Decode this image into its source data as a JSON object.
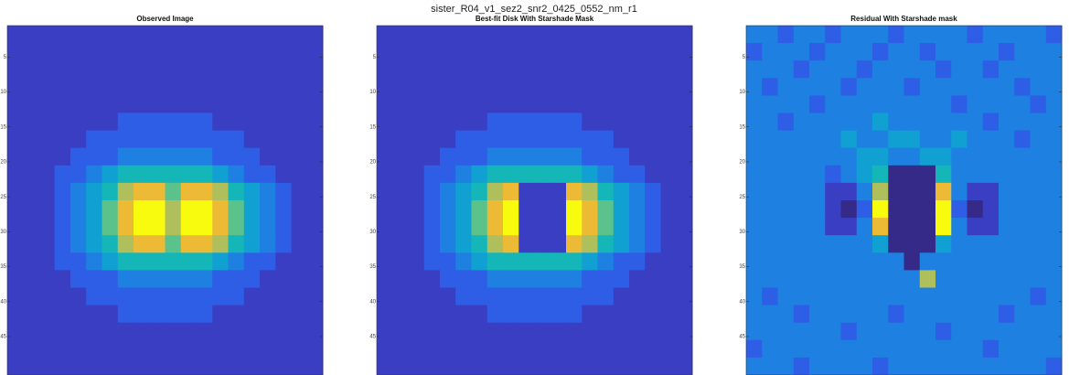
{
  "figure_title": "sister_R04_v1_sez2_snr2_0425_0552_nm_r1",
  "chart_data": [
    {
      "type": "heatmap",
      "title": "Observed Image",
      "ylim": [
        0.5,
        50.5
      ],
      "yticks": [
        5,
        10,
        15,
        20,
        25,
        30,
        35,
        40,
        45
      ],
      "clim": [
        0,
        9
      ],
      "colormap": [
        "#352a87",
        "#3a3ec3",
        "#2f5ee6",
        "#1e80e0",
        "#11a0d2",
        "#15b6b8",
        "#5cc28c",
        "#aebf5c",
        "#edba36",
        "#f9fb0e"
      ],
      "z": [
        [
          1,
          1,
          1,
          1,
          1,
          1,
          1,
          1,
          1,
          1,
          1,
          1,
          1,
          1,
          1,
          1,
          1,
          1,
          1,
          1
        ],
        [
          1,
          1,
          1,
          1,
          1,
          1,
          1,
          1,
          1,
          1,
          1,
          1,
          1,
          1,
          1,
          1,
          1,
          1,
          1,
          1
        ],
        [
          1,
          1,
          1,
          1,
          1,
          1,
          1,
          1,
          1,
          1,
          1,
          1,
          1,
          1,
          1,
          1,
          1,
          1,
          1,
          1
        ],
        [
          1,
          1,
          1,
          1,
          1,
          1,
          1,
          1,
          1,
          1,
          1,
          1,
          1,
          1,
          1,
          1,
          1,
          1,
          1,
          1
        ],
        [
          1,
          1,
          1,
          1,
          1,
          1,
          1,
          1,
          1,
          1,
          1,
          1,
          1,
          1,
          1,
          1,
          1,
          1,
          1,
          1
        ],
        [
          1,
          1,
          1,
          1,
          1,
          1,
          1,
          2,
          2,
          2,
          2,
          2,
          2,
          1,
          1,
          1,
          1,
          1,
          1,
          1
        ],
        [
          1,
          1,
          1,
          1,
          1,
          2,
          2,
          2,
          2,
          2,
          2,
          2,
          2,
          2,
          2,
          1,
          1,
          1,
          1,
          1
        ],
        [
          1,
          1,
          1,
          1,
          2,
          2,
          2,
          3,
          3,
          3,
          3,
          3,
          3,
          2,
          2,
          2,
          1,
          1,
          1,
          1
        ],
        [
          1,
          1,
          1,
          2,
          2,
          3,
          4,
          5,
          5,
          5,
          5,
          5,
          5,
          4,
          3,
          2,
          2,
          1,
          1,
          1
        ],
        [
          1,
          1,
          1,
          2,
          3,
          4,
          5,
          7,
          8,
          8,
          6,
          8,
          8,
          7,
          5,
          4,
          3,
          2,
          1,
          1
        ],
        [
          1,
          1,
          1,
          2,
          3,
          4,
          6,
          8,
          9,
          9,
          7,
          9,
          9,
          8,
          6,
          4,
          3,
          2,
          1,
          1
        ],
        [
          1,
          1,
          1,
          2,
          3,
          4,
          6,
          8,
          9,
          9,
          7,
          9,
          9,
          8,
          6,
          4,
          3,
          2,
          1,
          1
        ],
        [
          1,
          1,
          1,
          2,
          3,
          4,
          5,
          7,
          8,
          8,
          6,
          8,
          8,
          7,
          5,
          4,
          3,
          2,
          1,
          1
        ],
        [
          1,
          1,
          1,
          2,
          2,
          3,
          4,
          5,
          5,
          5,
          5,
          5,
          5,
          4,
          3,
          2,
          2,
          1,
          1,
          1
        ],
        [
          1,
          1,
          1,
          1,
          2,
          2,
          2,
          3,
          3,
          3,
          3,
          3,
          3,
          2,
          2,
          2,
          1,
          1,
          1,
          1
        ],
        [
          1,
          1,
          1,
          1,
          1,
          2,
          2,
          2,
          2,
          2,
          2,
          2,
          2,
          2,
          2,
          1,
          1,
          1,
          1,
          1
        ],
        [
          1,
          1,
          1,
          1,
          1,
          1,
          1,
          2,
          2,
          2,
          2,
          2,
          2,
          1,
          1,
          1,
          1,
          1,
          1,
          1
        ],
        [
          1,
          1,
          1,
          1,
          1,
          1,
          1,
          1,
          1,
          1,
          1,
          1,
          1,
          1,
          1,
          1,
          1,
          1,
          1,
          1
        ],
        [
          1,
          1,
          1,
          1,
          1,
          1,
          1,
          1,
          1,
          1,
          1,
          1,
          1,
          1,
          1,
          1,
          1,
          1,
          1,
          1
        ],
        [
          1,
          1,
          1,
          1,
          1,
          1,
          1,
          1,
          1,
          1,
          1,
          1,
          1,
          1,
          1,
          1,
          1,
          1,
          1,
          1
        ]
      ]
    },
    {
      "type": "heatmap",
      "title": "Best-fit Disk With Starshade Mask",
      "ylim": [
        0.5,
        50.5
      ],
      "yticks": [
        5,
        10,
        15,
        20,
        25,
        30,
        35,
        40,
        45
      ],
      "clim": [
        0,
        9
      ],
      "colormap": [
        "#352a87",
        "#3a3ec3",
        "#2f5ee6",
        "#1e80e0",
        "#11a0d2",
        "#15b6b8",
        "#5cc28c",
        "#aebf5c",
        "#edba36",
        "#f9fb0e"
      ],
      "z": [
        [
          1,
          1,
          1,
          1,
          1,
          1,
          1,
          1,
          1,
          1,
          1,
          1,
          1,
          1,
          1,
          1,
          1,
          1,
          1,
          1
        ],
        [
          1,
          1,
          1,
          1,
          1,
          1,
          1,
          1,
          1,
          1,
          1,
          1,
          1,
          1,
          1,
          1,
          1,
          1,
          1,
          1
        ],
        [
          1,
          1,
          1,
          1,
          1,
          1,
          1,
          1,
          1,
          1,
          1,
          1,
          1,
          1,
          1,
          1,
          1,
          1,
          1,
          1
        ],
        [
          1,
          1,
          1,
          1,
          1,
          1,
          1,
          1,
          1,
          1,
          1,
          1,
          1,
          1,
          1,
          1,
          1,
          1,
          1,
          1
        ],
        [
          1,
          1,
          1,
          1,
          1,
          1,
          1,
          1,
          1,
          1,
          1,
          1,
          1,
          1,
          1,
          1,
          1,
          1,
          1,
          1
        ],
        [
          1,
          1,
          1,
          1,
          1,
          1,
          1,
          2,
          2,
          2,
          2,
          2,
          2,
          1,
          1,
          1,
          1,
          1,
          1,
          1
        ],
        [
          1,
          1,
          1,
          1,
          1,
          2,
          2,
          2,
          2,
          2,
          2,
          2,
          2,
          2,
          2,
          1,
          1,
          1,
          1,
          1
        ],
        [
          1,
          1,
          1,
          1,
          2,
          2,
          2,
          3,
          3,
          3,
          3,
          3,
          3,
          2,
          2,
          2,
          1,
          1,
          1,
          1
        ],
        [
          1,
          1,
          1,
          2,
          2,
          3,
          4,
          5,
          5,
          5,
          5,
          5,
          5,
          4,
          3,
          2,
          2,
          1,
          1,
          1
        ],
        [
          1,
          1,
          1,
          2,
          3,
          4,
          5,
          7,
          8,
          1,
          1,
          1,
          8,
          7,
          5,
          4,
          3,
          2,
          1,
          1
        ],
        [
          1,
          1,
          1,
          2,
          3,
          4,
          6,
          8,
          9,
          1,
          1,
          1,
          9,
          8,
          6,
          4,
          3,
          2,
          1,
          1
        ],
        [
          1,
          1,
          1,
          2,
          3,
          4,
          6,
          8,
          9,
          1,
          1,
          1,
          9,
          8,
          6,
          4,
          3,
          2,
          1,
          1
        ],
        [
          1,
          1,
          1,
          2,
          3,
          4,
          5,
          7,
          8,
          1,
          1,
          1,
          8,
          7,
          5,
          4,
          3,
          2,
          1,
          1
        ],
        [
          1,
          1,
          1,
          2,
          2,
          3,
          4,
          5,
          5,
          5,
          5,
          5,
          5,
          4,
          3,
          2,
          2,
          1,
          1,
          1
        ],
        [
          1,
          1,
          1,
          1,
          2,
          2,
          2,
          3,
          3,
          3,
          3,
          3,
          3,
          2,
          2,
          2,
          1,
          1,
          1,
          1
        ],
        [
          1,
          1,
          1,
          1,
          1,
          2,
          2,
          2,
          2,
          2,
          2,
          2,
          2,
          2,
          2,
          1,
          1,
          1,
          1,
          1
        ],
        [
          1,
          1,
          1,
          1,
          1,
          1,
          1,
          2,
          2,
          2,
          2,
          2,
          2,
          1,
          1,
          1,
          1,
          1,
          1,
          1
        ],
        [
          1,
          1,
          1,
          1,
          1,
          1,
          1,
          1,
          1,
          1,
          1,
          1,
          1,
          1,
          1,
          1,
          1,
          1,
          1,
          1
        ],
        [
          1,
          1,
          1,
          1,
          1,
          1,
          1,
          1,
          1,
          1,
          1,
          1,
          1,
          1,
          1,
          1,
          1,
          1,
          1,
          1
        ],
        [
          1,
          1,
          1,
          1,
          1,
          1,
          1,
          1,
          1,
          1,
          1,
          1,
          1,
          1,
          1,
          1,
          1,
          1,
          1,
          1
        ]
      ]
    },
    {
      "type": "heatmap",
      "title": "Residual With Starshade mask",
      "ylim": [
        0.5,
        50.5
      ],
      "yticks": [
        5,
        10,
        15,
        20,
        25,
        30,
        35,
        40,
        45
      ],
      "clim": [
        0,
        9
      ],
      "colormap": [
        "#352a87",
        "#3a3ec3",
        "#2f5ee6",
        "#1e80e0",
        "#11a0d2",
        "#15b6b8",
        "#5cc28c",
        "#aebf5c",
        "#edba36",
        "#f9fb0e"
      ],
      "z": [
        [
          3,
          3,
          2,
          3,
          3,
          2,
          3,
          3,
          3,
          2,
          3,
          3,
          3,
          3,
          2,
          3,
          3,
          3,
          3,
          2
        ],
        [
          2,
          3,
          3,
          3,
          2,
          3,
          3,
          3,
          2,
          3,
          3,
          2,
          3,
          3,
          3,
          3,
          2,
          3,
          3,
          3
        ],
        [
          3,
          3,
          3,
          2,
          3,
          3,
          3,
          2,
          3,
          3,
          3,
          3,
          2,
          3,
          3,
          2,
          3,
          3,
          3,
          3
        ],
        [
          3,
          2,
          3,
          3,
          3,
          3,
          2,
          3,
          3,
          3,
          2,
          3,
          3,
          3,
          3,
          3,
          3,
          2,
          3,
          3
        ],
        [
          3,
          3,
          3,
          3,
          2,
          3,
          3,
          3,
          3,
          3,
          3,
          3,
          3,
          2,
          3,
          3,
          3,
          3,
          2,
          3
        ],
        [
          3,
          3,
          2,
          3,
          3,
          3,
          3,
          3,
          4,
          3,
          3,
          3,
          3,
          3,
          3,
          2,
          3,
          3,
          3,
          3
        ],
        [
          3,
          3,
          3,
          3,
          3,
          3,
          4,
          3,
          3,
          4,
          4,
          3,
          3,
          4,
          3,
          3,
          3,
          2,
          3,
          3
        ],
        [
          3,
          3,
          3,
          3,
          3,
          3,
          3,
          4,
          4,
          3,
          3,
          4,
          4,
          3,
          3,
          3,
          3,
          3,
          3,
          3
        ],
        [
          3,
          3,
          3,
          3,
          3,
          2,
          3,
          4,
          5,
          0,
          0,
          0,
          5,
          3,
          3,
          3,
          3,
          3,
          3,
          3
        ],
        [
          3,
          3,
          3,
          3,
          3,
          1,
          1,
          3,
          7,
          0,
          0,
          0,
          8,
          3,
          1,
          1,
          3,
          3,
          3,
          3
        ],
        [
          3,
          3,
          3,
          3,
          3,
          1,
          0,
          2,
          9,
          0,
          0,
          0,
          9,
          2,
          0,
          1,
          3,
          3,
          3,
          3
        ],
        [
          3,
          3,
          3,
          3,
          3,
          1,
          1,
          3,
          8,
          0,
          0,
          0,
          9,
          3,
          1,
          1,
          3,
          3,
          3,
          3
        ],
        [
          3,
          3,
          3,
          3,
          3,
          3,
          3,
          3,
          4,
          0,
          0,
          0,
          4,
          3,
          3,
          3,
          3,
          3,
          3,
          3
        ],
        [
          3,
          3,
          3,
          3,
          3,
          3,
          3,
          3,
          3,
          3,
          0,
          3,
          3,
          3,
          3,
          3,
          3,
          3,
          3,
          3
        ],
        [
          3,
          3,
          3,
          3,
          3,
          3,
          3,
          3,
          3,
          3,
          3,
          7,
          3,
          3,
          3,
          3,
          3,
          3,
          3,
          3
        ],
        [
          3,
          2,
          3,
          3,
          3,
          3,
          3,
          3,
          3,
          3,
          3,
          3,
          3,
          3,
          3,
          3,
          3,
          3,
          2,
          3
        ],
        [
          3,
          3,
          3,
          2,
          3,
          3,
          3,
          3,
          3,
          2,
          3,
          3,
          3,
          3,
          3,
          3,
          2,
          3,
          3,
          3
        ],
        [
          3,
          3,
          3,
          3,
          3,
          3,
          2,
          3,
          3,
          3,
          3,
          3,
          2,
          3,
          3,
          3,
          3,
          3,
          3,
          3
        ],
        [
          2,
          3,
          3,
          3,
          3,
          3,
          3,
          3,
          3,
          3,
          3,
          3,
          3,
          3,
          3,
          2,
          3,
          3,
          3,
          3
        ],
        [
          3,
          3,
          3,
          2,
          3,
          3,
          3,
          3,
          2,
          3,
          3,
          3,
          3,
          3,
          3,
          3,
          3,
          3,
          3,
          2
        ]
      ]
    }
  ]
}
